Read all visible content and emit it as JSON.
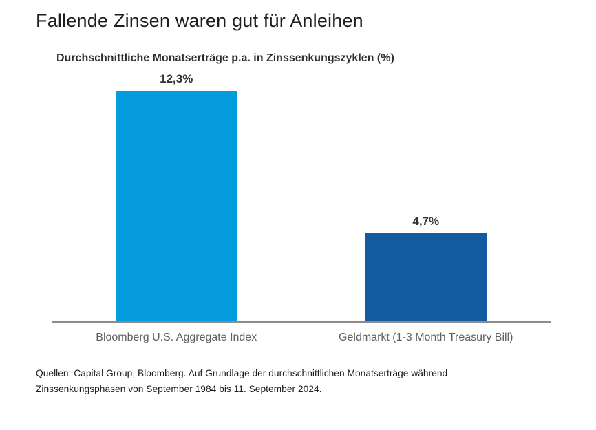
{
  "title": "Fallende Zinsen waren gut für Anleihen",
  "chart_data": {
    "type": "bar",
    "title": "Durchschnittliche Monatserträge p.a. in Zinssenkungszyklen (%)",
    "categories": [
      "Bloomberg U.S. Aggregate Index",
      "Geldmarkt (1-3 Month Treasury Bill)"
    ],
    "values": [
      12.3,
      4.7
    ],
    "value_labels": [
      "12,3%",
      "4,7%"
    ],
    "bar_colors": [
      "#049cdc",
      "#125ba2"
    ],
    "ylim": [
      0,
      12.3
    ],
    "xlabel": "",
    "ylabel": "",
    "grid": false,
    "legend": false,
    "axis_line_color": "#8c8c8c"
  },
  "footnote": "Quellen: Capital Group, Bloomberg. Auf Grundlage der durchschnittlichen Monatserträge während Zinssenkungsphasen von September 1984 bis 11. September 2024.",
  "colors": {
    "background": "#ffffff",
    "title_text": "#1e1e1e",
    "value_label_text": "#333333",
    "category_label_text": "#5f6062"
  }
}
